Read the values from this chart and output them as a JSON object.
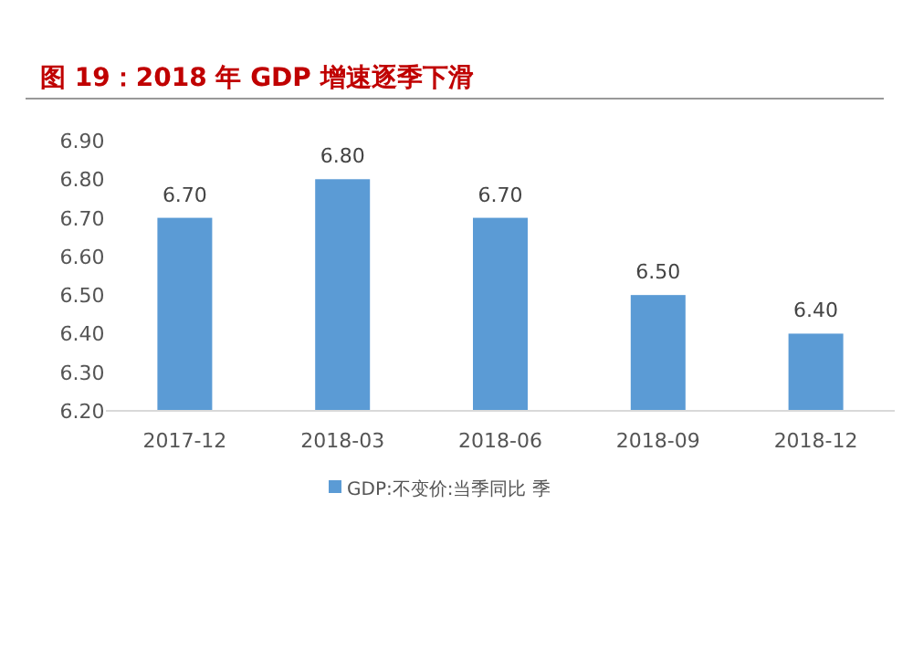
{
  "chart_data": {
    "type": "bar",
    "title": "图 19：2018 年 GDP 增速逐季下滑",
    "categories": [
      "2017-12",
      "2018-03",
      "2018-06",
      "2018-09",
      "2018-12"
    ],
    "series": [
      {
        "name": "GDP:不变价:当季同比 季",
        "color": "#5b9bd5",
        "values": [
          6.7,
          6.8,
          6.7,
          6.5,
          6.4
        ]
      }
    ],
    "ylim": [
      6.2,
      6.9
    ],
    "yticks": [
      {
        "value": 6.2,
        "label": "6.20"
      },
      {
        "value": 6.3,
        "label": "6.30"
      },
      {
        "value": 6.4,
        "label": "6.40"
      },
      {
        "value": 6.5,
        "label": "6.50"
      },
      {
        "value": 6.6,
        "label": "6.60"
      },
      {
        "value": 6.7,
        "label": "6.70"
      },
      {
        "value": 6.8,
        "label": "6.80"
      },
      {
        "value": 6.9,
        "label": "6.90"
      }
    ],
    "value_labels": [
      "6.70",
      "6.80",
      "6.70",
      "6.50",
      "6.40"
    ],
    "legend": "bottom",
    "grid": false
  }
}
